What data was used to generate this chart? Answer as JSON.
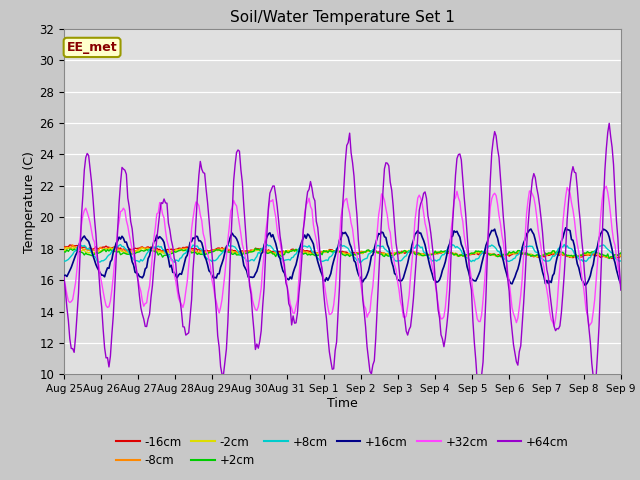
{
  "title": "Soil/Water Temperature Set 1",
  "xlabel": "Time",
  "ylabel": "Temperature (C)",
  "ylim": [
    10,
    32
  ],
  "annotation": "EE_met",
  "fig_facecolor": "#c8c8c8",
  "ax_facecolor": "#e0e0e0",
  "grid_color": "#ffffff",
  "xtick_labels": [
    "Aug 25",
    "Aug 26",
    "Aug 27",
    "Aug 28",
    "Aug 29",
    "Aug 30",
    "Aug 31",
    "Sep 1",
    "Sep 2",
    "Sep 3",
    "Sep 4",
    "Sep 5",
    "Sep 6",
    "Sep 7",
    "Sep 8",
    "Sep 9"
  ],
  "series_colors": {
    "-16cm": "#dd0000",
    "-8cm": "#ff8800",
    "-2cm": "#dddd00",
    "+2cm": "#00cc00",
    "+8cm": "#00cccc",
    "+16cm": "#000088",
    "+32cm": "#ff44ff",
    "+64cm": "#9900cc"
  },
  "n_points": 385,
  "base_temp": 17.7
}
